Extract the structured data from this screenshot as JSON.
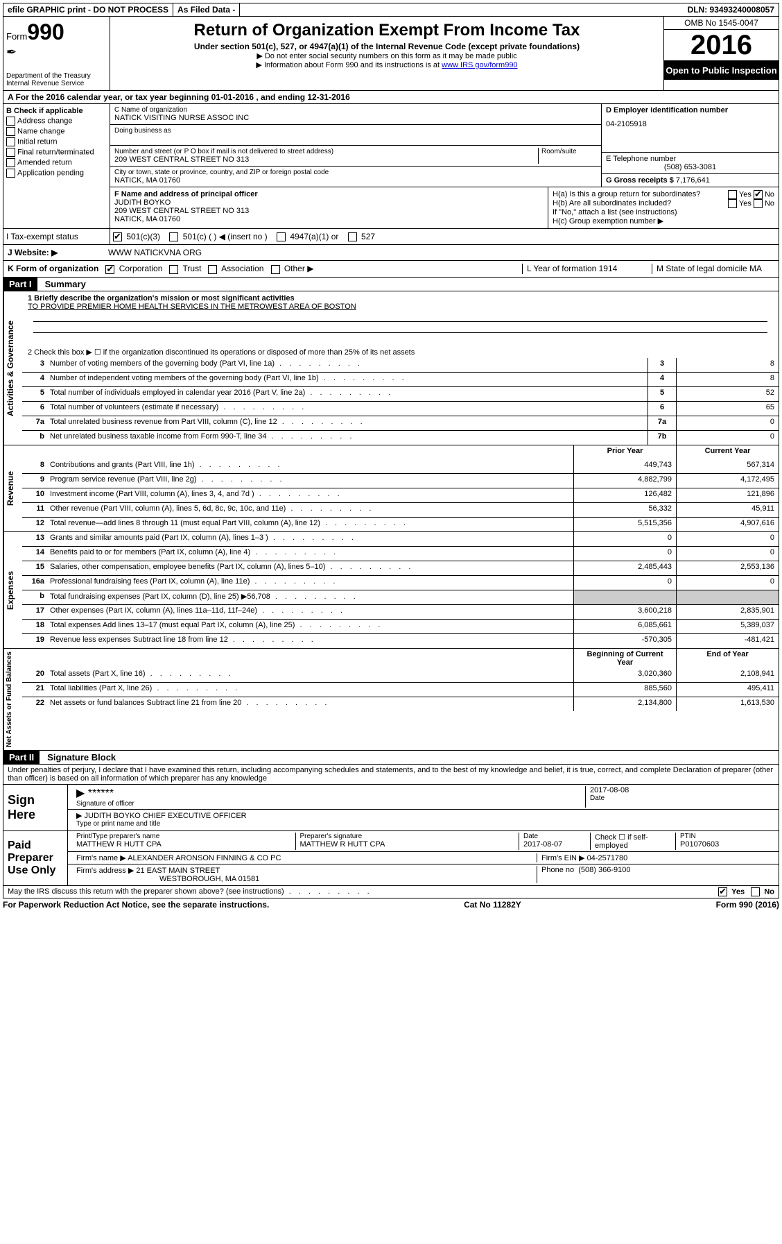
{
  "topbar": {
    "efile": "efile GRAPHIC print - DO NOT PROCESS",
    "asfiled": "As Filed Data -",
    "dln": "DLN: 93493240008057"
  },
  "header": {
    "form_prefix": "Form",
    "form_no": "990",
    "dept1": "Department of the Treasury",
    "dept2": "Internal Revenue Service",
    "title": "Return of Organization Exempt From Income Tax",
    "subtitle": "Under section 501(c), 527, or 4947(a)(1) of the Internal Revenue Code (except private foundations)",
    "note1": "▶ Do not enter social security numbers on this form as it may be made public",
    "note2_pre": "▶ Information about Form 990 and its instructions is at ",
    "note2_link": "www IRS gov/form990",
    "omb": "OMB No  1545-0047",
    "year": "2016",
    "open": "Open to Public Inspection"
  },
  "rowA": "A   For the 2016 calendar year, or tax year beginning 01-01-2016   , and ending 12-31-2016",
  "B": {
    "title": "B Check if applicable",
    "items": [
      "Address change",
      "Name change",
      "Initial return",
      "Final return/terminated",
      "Amended return",
      "Application pending"
    ]
  },
  "C": {
    "label": "C Name of organization",
    "name": "NATICK VISITING NURSE ASSOC INC",
    "dba_label": "Doing business as",
    "addr_label": "Number and street (or P O  box if mail is not delivered to street address)",
    "room_label": "Room/suite",
    "addr": "209 WEST CENTRAL STREET NO 313",
    "city_label": "City or town, state or province, country, and ZIP or foreign postal code",
    "city": "NATICK, MA  01760"
  },
  "D": {
    "label": "D Employer identification number",
    "value": "04-2105918"
  },
  "E": {
    "label": "E Telephone number",
    "value": "(508) 653-3081"
  },
  "G": {
    "label": "G Gross receipts $",
    "value": "7,176,641"
  },
  "F": {
    "label": "F  Name and address of principal officer",
    "name": "JUDITH BOYKO",
    "addr1": "209 WEST CENTRAL STREET NO 313",
    "addr2": "NATICK, MA  01760"
  },
  "H": {
    "a": "H(a)  Is this a group return for subordinates?",
    "b": "H(b)  Are all subordinates included?",
    "note": "If \"No,\" attach a list  (see instructions)",
    "c": "H(c)  Group exemption number ▶",
    "yes": "Yes",
    "no": "No"
  },
  "I": {
    "label": "I   Tax-exempt status",
    "opts": [
      "501(c)(3)",
      "501(c) (   ) ◀ (insert no )",
      "4947(a)(1) or",
      "527"
    ]
  },
  "J": {
    "label": "J   Website: ▶",
    "value": "WWW NATICKVNA ORG"
  },
  "K": {
    "label": "K Form of organization",
    "opts": [
      "Corporation",
      "Trust",
      "Association",
      "Other ▶"
    ]
  },
  "L": {
    "label": "L Year of formation  1914"
  },
  "M": {
    "label": "M State of legal domicile MA"
  },
  "part1": {
    "header": "Part I",
    "title": "Summary",
    "line1_label": "1  Briefly describe the organization's mission or most significant activities",
    "line1_text": "TO PROVIDE PREMIER HOME HEALTH SERVICES IN THE METROWEST AREA OF BOSTON",
    "line2": "2    Check this box ▶ ☐  if the organization discontinued its operations or disposed of more than 25% of its net assets",
    "sections": {
      "gov": "Activities & Governance",
      "rev": "Revenue",
      "exp": "Expenses",
      "net": "Net Assets or Fund Balances"
    },
    "col_prior": "Prior Year",
    "col_current": "Current Year",
    "col_boy": "Beginning of Current Year",
    "col_eoy": "End of Year",
    "lines_gov": [
      {
        "n": "3",
        "t": "Number of voting members of the governing body (Part VI, line 1a)",
        "box": "3",
        "v": "8"
      },
      {
        "n": "4",
        "t": "Number of independent voting members of the governing body (Part VI, line 1b)",
        "box": "4",
        "v": "8"
      },
      {
        "n": "5",
        "t": "Total number of individuals employed in calendar year 2016 (Part V, line 2a)",
        "box": "5",
        "v": "52"
      },
      {
        "n": "6",
        "t": "Total number of volunteers (estimate if necessary)",
        "box": "6",
        "v": "65"
      },
      {
        "n": "7a",
        "t": "Total unrelated business revenue from Part VIII, column (C), line 12",
        "box": "7a",
        "v": "0"
      },
      {
        "n": "b",
        "t": "Net unrelated business taxable income from Form 990-T, line 34",
        "box": "7b",
        "v": "0"
      }
    ],
    "lines_rev": [
      {
        "n": "8",
        "t": "Contributions and grants (Part VIII, line 1h)",
        "p": "449,743",
        "c": "567,314"
      },
      {
        "n": "9",
        "t": "Program service revenue (Part VIII, line 2g)",
        "p": "4,882,799",
        "c": "4,172,495"
      },
      {
        "n": "10",
        "t": "Investment income (Part VIII, column (A), lines 3, 4, and 7d )",
        "p": "126,482",
        "c": "121,896"
      },
      {
        "n": "11",
        "t": "Other revenue (Part VIII, column (A), lines 5, 6d, 8c, 9c, 10c, and 11e)",
        "p": "56,332",
        "c": "45,911"
      },
      {
        "n": "12",
        "t": "Total revenue—add lines 8 through 11 (must equal Part VIII, column (A), line 12)",
        "p": "5,515,356",
        "c": "4,907,616"
      }
    ],
    "lines_exp": [
      {
        "n": "13",
        "t": "Grants and similar amounts paid (Part IX, column (A), lines 1–3 )",
        "p": "0",
        "c": "0"
      },
      {
        "n": "14",
        "t": "Benefits paid to or for members (Part IX, column (A), line 4)",
        "p": "0",
        "c": "0"
      },
      {
        "n": "15",
        "t": "Salaries, other compensation, employee benefits (Part IX, column (A), lines 5–10)",
        "p": "2,485,443",
        "c": "2,553,136"
      },
      {
        "n": "16a",
        "t": "Professional fundraising fees (Part IX, column (A), line 11e)",
        "p": "0",
        "c": "0"
      },
      {
        "n": "b",
        "t": "Total fundraising expenses (Part IX, column (D), line 25) ▶56,708",
        "p": "",
        "c": "",
        "grey": true
      },
      {
        "n": "17",
        "t": "Other expenses (Part IX, column (A), lines 11a–11d, 11f–24e)",
        "p": "3,600,218",
        "c": "2,835,901"
      },
      {
        "n": "18",
        "t": "Total expenses  Add lines 13–17 (must equal Part IX, column (A), line 25)",
        "p": "6,085,661",
        "c": "5,389,037"
      },
      {
        "n": "19",
        "t": "Revenue less expenses  Subtract line 18 from line 12",
        "p": "-570,305",
        "c": "-481,421"
      }
    ],
    "lines_net": [
      {
        "n": "20",
        "t": "Total assets (Part X, line 16)",
        "p": "3,020,360",
        "c": "2,108,941"
      },
      {
        "n": "21",
        "t": "Total liabilities (Part X, line 26)",
        "p": "885,560",
        "c": "495,411"
      },
      {
        "n": "22",
        "t": "Net assets or fund balances  Subtract line 21 from line 20",
        "p": "2,134,800",
        "c": "1,613,530"
      }
    ]
  },
  "part2": {
    "header": "Part II",
    "title": "Signature Block",
    "perjury": "Under penalties of perjury, I declare that I have examined this return, including accompanying schedules and statements, and to the best of my knowledge and belief, it is true, correct, and complete  Declaration of preparer (other than officer) is based on all information of which preparer has any knowledge",
    "sign_here": "Sign Here",
    "stars": "******",
    "sig_officer": "Signature of officer",
    "date": "Date",
    "sig_date": "2017-08-08",
    "name_title": "JUDITH BOYKO  CHIEF EXECUTIVE OFFICER",
    "name_title_label": "Type or print name and title",
    "paid": "Paid Preparer Use Only",
    "prep_name_label": "Print/Type preparer's name",
    "prep_name": "MATTHEW R HUTT CPA",
    "prep_sig_label": "Preparer's signature",
    "prep_sig": "MATTHEW R HUTT CPA",
    "prep_date": "2017-08-07",
    "check_self": "Check ☐ if self-employed",
    "ptin_label": "PTIN",
    "ptin": "P01070603",
    "firm_name_label": "Firm's name      ▶",
    "firm_name": "ALEXANDER ARONSON FINNING & CO PC",
    "firm_ein_label": "Firm's EIN ▶",
    "firm_ein": "04-2571780",
    "firm_addr_label": "Firm's address ▶",
    "firm_addr1": "21 EAST MAIN STREET",
    "firm_addr2": "WESTBOROUGH, MA  01581",
    "phone_label": "Phone no",
    "phone": "(508) 366-9100",
    "discuss": "May the IRS discuss this return with the preparer shown above? (see instructions)",
    "yes": "Yes",
    "no": "No"
  },
  "footer": {
    "left": "For Paperwork Reduction Act Notice, see the separate instructions.",
    "center": "Cat No  11282Y",
    "right": "Form 990 (2016)"
  }
}
